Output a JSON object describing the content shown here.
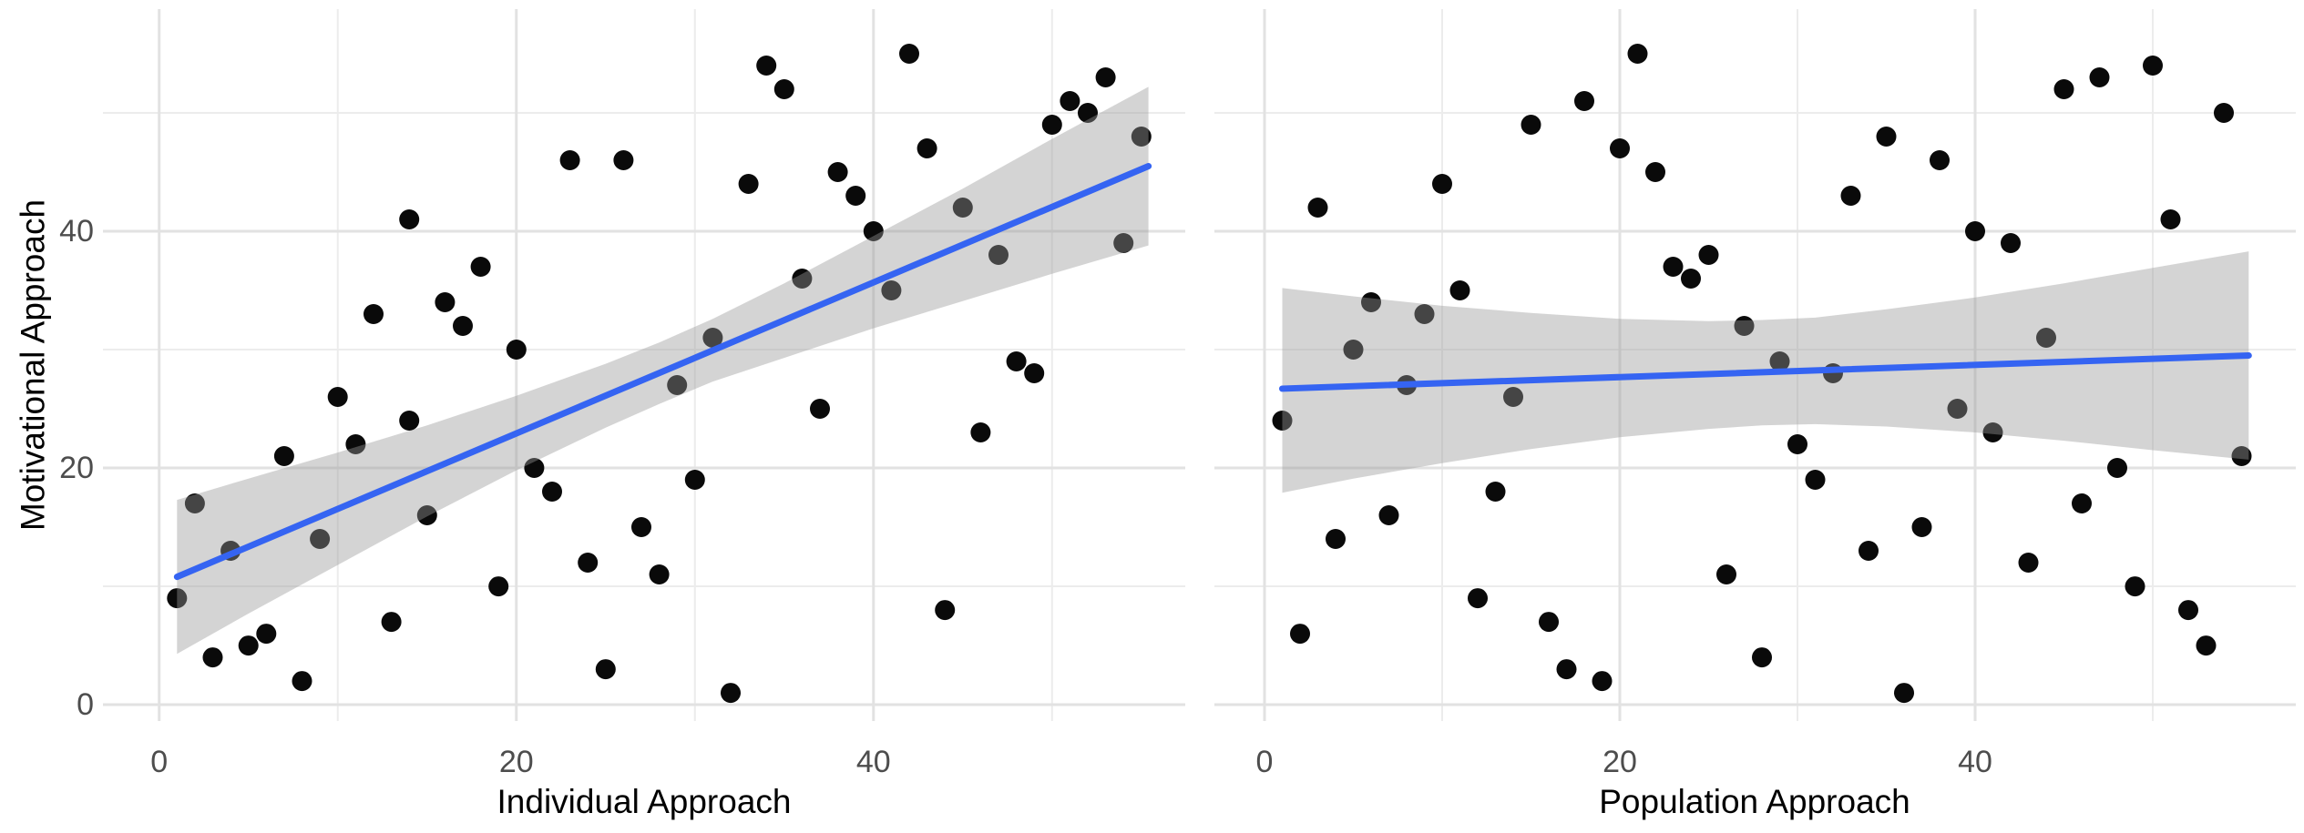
{
  "figure_type": "two-panel scatter plot with linear regression fit and confidence band",
  "ylabel": "Motivational Approach",
  "colors": {
    "background": "#ffffff",
    "regression_line": "#3564f2",
    "confidence_band": "rgba(153,153,153,0.42)",
    "point": "#0a0a0a",
    "grid_major": "#e2e2e2",
    "grid_minor": "#ececec",
    "tick_text": "#4d4d4d",
    "axis_title_text": "#000000"
  },
  "chart_data": [
    {
      "type": "scatter",
      "title": "",
      "xlabel": "Individual Approach",
      "ylabel": "Motivational Approach",
      "legend": false,
      "grid": true,
      "xlim": [
        -3.15,
        57.46
      ],
      "ylim": [
        -1.38,
        58.77
      ],
      "x_ticks": {
        "major": [
          0,
          20,
          40
        ],
        "labels": [
          "0",
          "20",
          "40"
        ],
        "minor": [
          10,
          30,
          50
        ]
      },
      "y_ticks": {
        "major": [
          0,
          20,
          40
        ],
        "labels": [
          "0",
          "20",
          "40"
        ],
        "minor": [
          10,
          30,
          50
        ]
      },
      "points": [
        [
          1,
          9
        ],
        [
          2,
          17
        ],
        [
          3,
          4
        ],
        [
          4,
          13
        ],
        [
          5,
          5
        ],
        [
          6,
          6
        ],
        [
          7,
          21
        ],
        [
          8,
          2
        ],
        [
          9,
          14
        ],
        [
          10,
          26
        ],
        [
          11,
          22
        ],
        [
          12,
          33
        ],
        [
          13,
          7
        ],
        [
          14,
          41
        ],
        [
          14,
          24
        ],
        [
          15,
          16
        ],
        [
          16,
          34
        ],
        [
          17,
          32
        ],
        [
          18,
          37
        ],
        [
          19,
          10
        ],
        [
          20,
          30
        ],
        [
          21,
          20
        ],
        [
          22,
          18
        ],
        [
          23,
          46
        ],
        [
          24,
          12
        ],
        [
          25,
          3
        ],
        [
          26,
          46
        ],
        [
          27,
          15
        ],
        [
          28,
          11
        ],
        [
          29,
          27
        ],
        [
          30,
          19
        ],
        [
          31,
          31
        ],
        [
          32,
          1
        ],
        [
          33,
          44
        ],
        [
          34,
          54
        ],
        [
          35,
          52
        ],
        [
          36,
          36
        ],
        [
          37,
          25
        ],
        [
          38,
          45
        ],
        [
          39,
          43
        ],
        [
          40,
          40
        ],
        [
          41,
          35
        ],
        [
          42,
          55
        ],
        [
          43,
          47
        ],
        [
          44,
          8
        ],
        [
          45,
          42
        ],
        [
          46,
          23
        ],
        [
          47,
          38
        ],
        [
          48,
          29
        ],
        [
          49,
          28
        ],
        [
          50,
          49
        ],
        [
          51,
          51
        ],
        [
          52,
          50
        ],
        [
          53,
          53
        ],
        [
          54,
          39
        ],
        [
          55,
          48
        ]
      ],
      "regression": {
        "x1": 1,
        "y1": 10.8,
        "x2": 55.4,
        "y2": 45.5
      },
      "ci_ribbon": {
        "x": [
          1,
          5,
          10,
          15,
          20,
          25,
          28,
          31,
          35,
          40,
          45,
          50,
          55.4
        ],
        "hi": [
          17.3,
          19.1,
          21.3,
          23.6,
          26.1,
          28.8,
          30.6,
          32.6,
          35.6,
          39.6,
          43.6,
          47.8,
          52.2
        ],
        "lo": [
          4.3,
          7.7,
          11.8,
          15.9,
          19.8,
          23.4,
          25.4,
          27.3,
          29.3,
          31.8,
          34.1,
          36.4,
          38.8
        ]
      }
    },
    {
      "type": "scatter",
      "title": "",
      "xlabel": "Population Approach",
      "ylabel": "",
      "legend": false,
      "grid": true,
      "xlim": [
        -2.82,
        58.05
      ],
      "ylim": [
        -1.38,
        58.77
      ],
      "x_ticks": {
        "major": [
          0,
          20,
          40
        ],
        "labels": [
          "0",
          "20",
          "40"
        ],
        "minor": [
          10,
          30,
          50
        ]
      },
      "y_ticks": {
        "major": [
          0,
          20,
          40
        ],
        "labels": [],
        "minor": [
          10,
          30,
          50
        ]
      },
      "points": [
        [
          1,
          24
        ],
        [
          2,
          6
        ],
        [
          3,
          42
        ],
        [
          4,
          14
        ],
        [
          5,
          30
        ],
        [
          6,
          34
        ],
        [
          7,
          16
        ],
        [
          8,
          27
        ],
        [
          9,
          33
        ],
        [
          10,
          44
        ],
        [
          11,
          35
        ],
        [
          12,
          9
        ],
        [
          13,
          18
        ],
        [
          14,
          26
        ],
        [
          15,
          49
        ],
        [
          16,
          7
        ],
        [
          17,
          3
        ],
        [
          18,
          51
        ],
        [
          19,
          2
        ],
        [
          20,
          47
        ],
        [
          21,
          55
        ],
        [
          22,
          45
        ],
        [
          23,
          37
        ],
        [
          24,
          36
        ],
        [
          25,
          38
        ],
        [
          26,
          11
        ],
        [
          27,
          32
        ],
        [
          28,
          4
        ],
        [
          29,
          29
        ],
        [
          30,
          22
        ],
        [
          31,
          19
        ],
        [
          32,
          28
        ],
        [
          33,
          43
        ],
        [
          34,
          13
        ],
        [
          35,
          48
        ],
        [
          36,
          1
        ],
        [
          37,
          15
        ],
        [
          38,
          46
        ],
        [
          39,
          25
        ],
        [
          40,
          40
        ],
        [
          41,
          23
        ],
        [
          42,
          39
        ],
        [
          43,
          12
        ],
        [
          44,
          31
        ],
        [
          45,
          52
        ],
        [
          46,
          17
        ],
        [
          47,
          53
        ],
        [
          48,
          20
        ],
        [
          49,
          10
        ],
        [
          50,
          54
        ],
        [
          51,
          41
        ],
        [
          52,
          8
        ],
        [
          53,
          5
        ],
        [
          54,
          50
        ],
        [
          55,
          21
        ]
      ],
      "regression": {
        "x1": 1,
        "y1": 26.7,
        "x2": 55.4,
        "y2": 29.5
      },
      "ci_ribbon": {
        "x": [
          1,
          5,
          10,
          15,
          20,
          25,
          28,
          31,
          35,
          40,
          45,
          50,
          55.4
        ],
        "hi": [
          35.2,
          34.5,
          33.7,
          33.1,
          32.6,
          32.4,
          32.5,
          32.7,
          33.4,
          34.4,
          35.6,
          36.9,
          38.3
        ],
        "lo": [
          17.9,
          19.1,
          20.4,
          21.6,
          22.6,
          23.3,
          23.6,
          23.7,
          23.5,
          23.0,
          22.3,
          21.5,
          20.7
        ]
      }
    }
  ]
}
